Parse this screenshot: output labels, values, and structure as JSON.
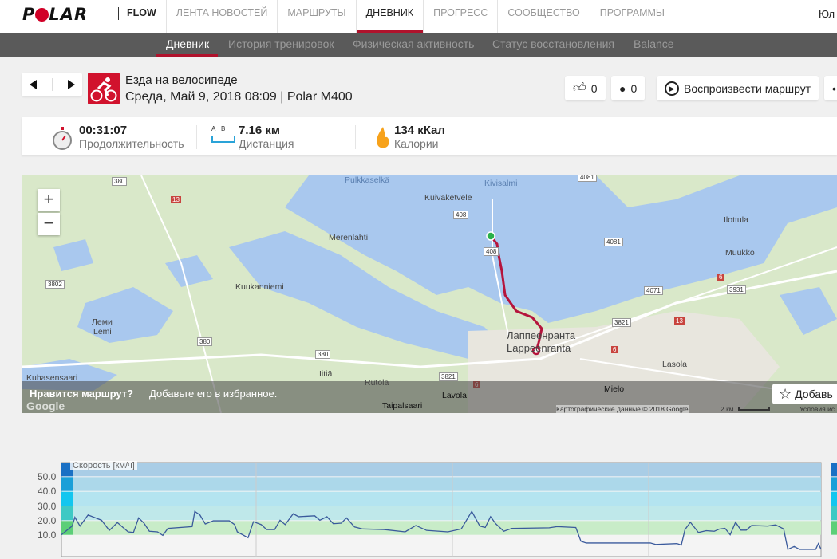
{
  "header": {
    "logo": "POLAR",
    "flow": "FLOW",
    "nav": [
      "ЛЕНТА НОВОСТЕЙ",
      "МАРШРУТЫ",
      "ДНЕВНИК",
      "ПРОГРЕСС",
      "СООБЩЕСТВО",
      "ПРОГРАММЫ"
    ],
    "active": "ДНЕВНИК",
    "user": "Юл"
  },
  "subnav": {
    "items": [
      "Дневник",
      "История тренировок",
      "Физическая активность",
      "Статус восстановления",
      "Balance"
    ],
    "active": "Дневник"
  },
  "session": {
    "sport": "Езда на велосипеде",
    "details": "Среда, Май 9, 2018 08:09 | Polar M400",
    "likes": "0",
    "comments": "0",
    "replay": "Воспроизвести маршрут"
  },
  "stats": {
    "duration": {
      "value": "00:31:07",
      "label": "Продолжительность"
    },
    "distance": {
      "value": "7.16 км",
      "label": "Дистанция",
      "a": "A",
      "b": "B"
    },
    "calories": {
      "value": "134 кКал",
      "label": "Калории"
    }
  },
  "map": {
    "labels": [
      "Pulkkaselkä",
      "Kivisalmi",
      "Kuivaketvele",
      "Merenlahti",
      "Kuukanniemi",
      "Леми",
      "Lemi",
      "Лаппеенранта",
      "Lappeenranta",
      "Ilottula",
      "Muukko",
      "Lasola",
      "Mielo",
      "Kuhasensaari",
      "Iitiä",
      "Rutola",
      "Lavola",
      "Taipalsaari"
    ],
    "roads": [
      "380",
      "13",
      "408",
      "408",
      "3802",
      "380",
      "380",
      "4081",
      "4081",
      "4071",
      "3931",
      "6",
      "3821",
      "13",
      "6",
      "3821",
      "6"
    ],
    "promo_bold": "Нравится маршрут?",
    "promo": "Добавьте его в избранное.",
    "favorite": "Добавь",
    "attribution": "Картографические данные © 2018 Google",
    "scale": "2 км",
    "terms": "Условия ис",
    "google": "Google"
  },
  "chart_data": {
    "type": "line",
    "title": "Скорость [км/ч]",
    "yticks": [
      "10.0",
      "20.0",
      "30.0",
      "40.0",
      "50.0"
    ],
    "ylim": [
      0,
      60
    ],
    "xlim": [
      0,
      31.1
    ],
    "zones": [
      {
        "from": 10,
        "to": 20,
        "color": "#c8ecc8"
      },
      {
        "from": 20,
        "to": 30,
        "color": "#bfe8ea"
      },
      {
        "from": 30,
        "to": 40,
        "color": "#b4e4f0"
      },
      {
        "from": 40,
        "to": 50,
        "color": "#acd8ea"
      },
      {
        "from": 50,
        "to": 60,
        "color": "#a9cde6"
      }
    ],
    "zone_colors": [
      "#5ccf78",
      "#3ec9c4",
      "#13c6ef",
      "#1a9fd8",
      "#1a70c4"
    ],
    "line_color": "#3a5a9c",
    "x": [
      0,
      0.44,
      0.55,
      0.76,
      1.09,
      1.64,
      1.96,
      2.29,
      2.73,
      2.95,
      3.16,
      3.38,
      3.6,
      3.93,
      4.15,
      4.36,
      5.35,
      5.46,
      5.67,
      5.89,
      6.22,
      6.87,
      7.09,
      7.2,
      7.64,
      7.86,
      8.18,
      8.4,
      8.73,
      8.95,
      9.16,
      9.49,
      9.71,
      10.37,
      10.58,
      10.87,
      11.13,
      11.46,
      11.67,
      12.0,
      12.33,
      13.2,
      14.07,
      14.51,
      14.95,
      15.82,
      16.37,
      16.8,
      17.13,
      17.35,
      17.57,
      17.78,
      18.11,
      18.44,
      19.97,
      20.29,
      21.06,
      21.27,
      21.49,
      24.11,
      24.33,
      25.2,
      25.38,
      25.53,
      25.75,
      26.08,
      26.4,
      26.73,
      26.95,
      27.17,
      27.38,
      27.6,
      27.82,
      28.04,
      28.26,
      28.91,
      29.24,
      29.57,
      29.74,
      30.0,
      30.22,
      30.88,
      30.99,
      31.1
    ],
    "y": [
      10,
      16,
      22,
      16,
      23.6,
      20,
      13,
      18.4,
      12,
      11.6,
      21.6,
      18,
      12.4,
      12,
      9.6,
      14.4,
      15.6,
      26,
      23.6,
      17.4,
      19.6,
      19.6,
      17,
      12,
      8,
      19,
      17,
      13.6,
      13.6,
      20,
      17,
      24.4,
      22.4,
      23,
      20,
      22.4,
      17.6,
      18,
      21.6,
      15.4,
      14,
      13.6,
      12,
      16.4,
      13,
      12,
      14,
      26,
      16,
      15,
      22.4,
      17.6,
      12.4,
      14.4,
      14.8,
      15.6,
      15,
      5.6,
      4.4,
      4.4,
      3.4,
      4,
      3,
      13.6,
      18.6,
      11.6,
      12.8,
      12.4,
      14,
      14.4,
      10,
      18.6,
      13.2,
      13.2,
      16.4,
      16,
      16.8,
      14,
      0,
      2,
      0,
      0,
      4,
      0
    ]
  }
}
